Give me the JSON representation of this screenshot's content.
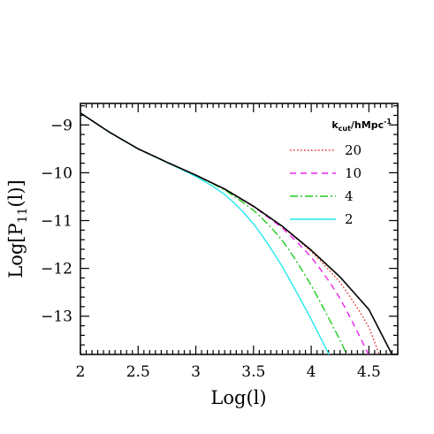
{
  "chart_data": {
    "type": "line",
    "title": "",
    "xlabel": "Log(l)",
    "ylabel_main": "Log[P",
    "ylabel_sub": "11",
    "ylabel_tail": "(l)]",
    "xlim": [
      2,
      4.75
    ],
    "ylim": [
      -13.8,
      -8.55
    ],
    "xticks": [
      2,
      2.5,
      3,
      3.5,
      4,
      4.5
    ],
    "xtick_labels": [
      "2",
      "2.5",
      "3",
      "3.5",
      "4",
      "4.5"
    ],
    "yticks": [
      -9,
      -10,
      -11,
      -12,
      -13
    ],
    "ytick_labels": [
      "−9",
      "−10",
      "−11",
      "−12",
      "−13"
    ],
    "legend_title_main": "k",
    "legend_title_sub": "cut",
    "legend_title_tail": "/hMpc",
    "legend_title_sup": "-1",
    "legend_position": "top-right",
    "base_curve": {
      "name": "",
      "color": "#000000",
      "x": [
        2.0,
        2.25,
        2.5,
        2.75,
        3.0,
        3.25,
        3.5,
        3.75,
        4.0,
        4.25,
        4.5,
        4.7
      ],
      "y": [
        -8.75,
        -9.15,
        -9.5,
        -9.78,
        -10.05,
        -10.34,
        -10.7,
        -11.12,
        -11.62,
        -12.18,
        -12.86,
        -13.8
      ]
    },
    "series": [
      {
        "name": "20",
        "color": "#e8251c",
        "dash": "dotted",
        "kcut_log": 4.45,
        "x": [],
        "y": []
      },
      {
        "name": "10",
        "color": "#ee22ee",
        "dash": "dashed",
        "kcut_log": 4.15,
        "x": [],
        "y": []
      },
      {
        "name": "4",
        "color": "#22cc22",
        "dash": "dashdot",
        "kcut_log": 3.75,
        "x": [],
        "y": []
      },
      {
        "name": "2",
        "color": "#22e8ee",
        "dash": "solid",
        "kcut_log": 3.45,
        "x": [],
        "y": []
      }
    ]
  }
}
